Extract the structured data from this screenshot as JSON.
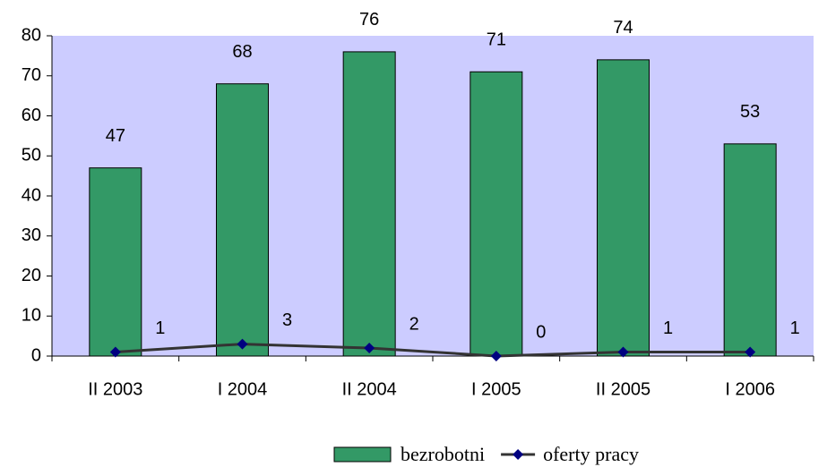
{
  "chart_data": {
    "type": "bar",
    "categories": [
      "II 2003",
      "I 2004",
      "II 2004",
      "I 2005",
      "II 2005",
      "I 2006"
    ],
    "series": [
      {
        "name": "bezrobotni",
        "type": "bar",
        "color": "#339966",
        "values": [
          47,
          68,
          76,
          71,
          74,
          53
        ]
      },
      {
        "name": "oferty pracy",
        "type": "line",
        "color": "#333333",
        "marker_color": "#000080",
        "values": [
          1,
          3,
          2,
          0,
          1,
          1
        ]
      }
    ],
    "ylim": [
      0,
      80
    ],
    "yticks": [
      0,
      10,
      20,
      30,
      40,
      50,
      60,
      70,
      80
    ],
    "plot_background": "#ccccff",
    "legend": "bottom"
  }
}
